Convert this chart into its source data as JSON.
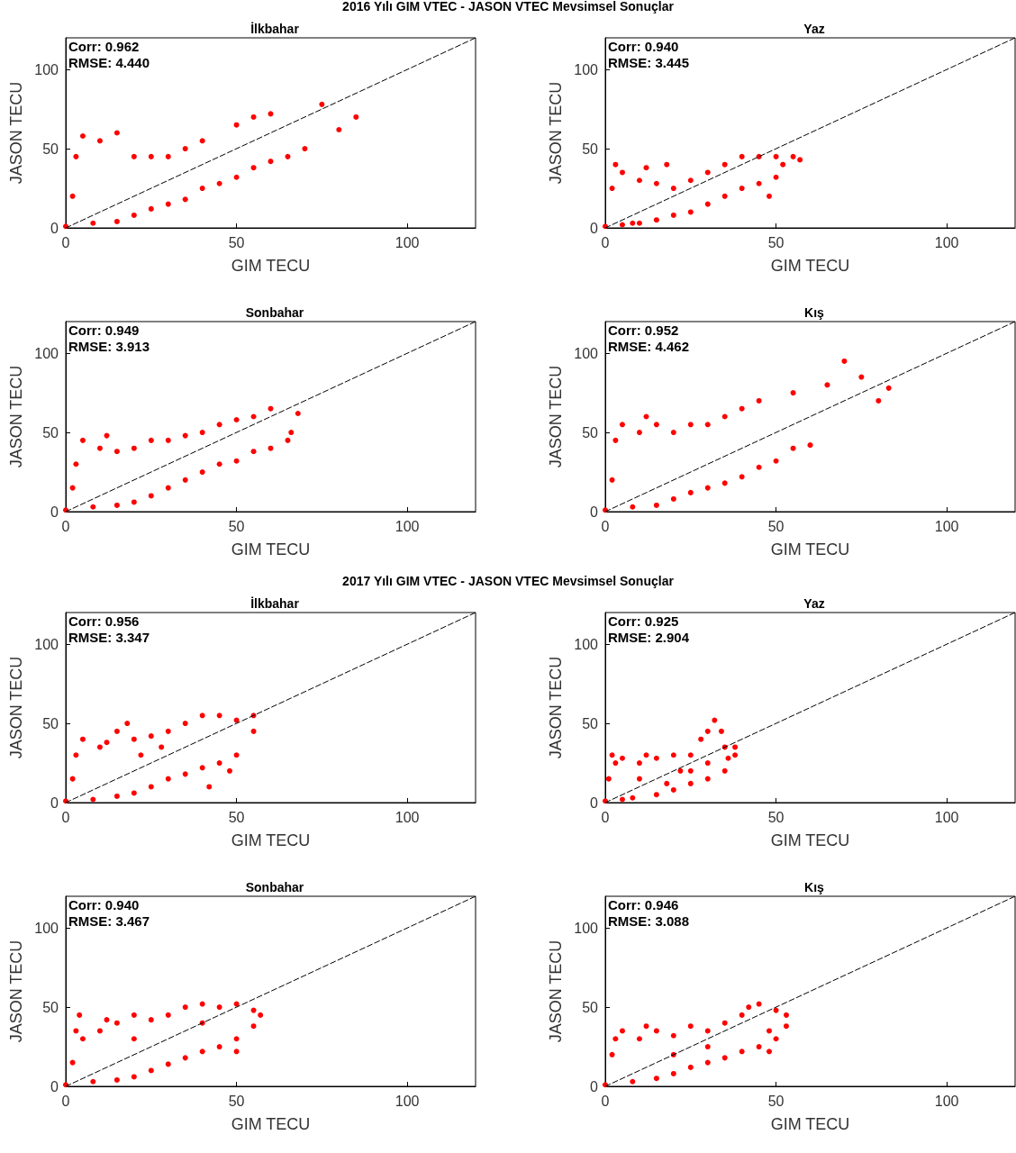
{
  "chart_data": [
    {
      "type": "scatter",
      "title": "İlkbahar",
      "xlabel": "GIM TECU",
      "ylabel": "JASON TECU",
      "xlim": [
        0,
        120
      ],
      "ylim": [
        0,
        120
      ],
      "xticks": [
        0,
        50,
        100
      ],
      "yticks": [
        0,
        50,
        100
      ],
      "grid": false,
      "marker": "circle",
      "annotations": [
        "Corr: 0.962",
        "RMSE: 4.440",
        "2016 Yılı GIM VTEC - JASON VTEC Mevsimsel Sonuçlar"
      ],
      "series": [
        {
          "color": "#ff0000",
          "x": [
            0,
            2,
            3,
            5,
            8,
            10,
            15,
            15,
            20,
            20,
            25,
            25,
            30,
            30,
            35,
            35,
            40,
            40,
            45,
            50,
            50,
            55,
            55,
            60,
            60,
            65,
            70,
            75,
            80,
            85
          ],
          "values": [
            1,
            20,
            45,
            58,
            3,
            55,
            4,
            60,
            8,
            45,
            12,
            45,
            15,
            45,
            18,
            50,
            25,
            55,
            28,
            32,
            65,
            38,
            70,
            42,
            72,
            45,
            50,
            78,
            62,
            70
          ]
        },
        {
          "type": "line",
          "color": "#000000",
          "line_style": "dashed",
          "marker": "none",
          "x": [
            0,
            120
          ],
          "values": [
            0,
            120
          ]
        }
      ]
    },
    {
      "type": "scatter",
      "title": "Yaz",
      "xlabel": "GIM TECU",
      "ylabel": "JASON TECU",
      "xlim": [
        0,
        120
      ],
      "ylim": [
        0,
        120
      ],
      "xticks": [
        0,
        50,
        100
      ],
      "yticks": [
        0,
        50,
        100
      ],
      "grid": false,
      "marker": "circle",
      "annotations": [
        "Corr: 0.940",
        "RMSE: 3.445"
      ],
      "series": [
        {
          "color": "#ff0000",
          "x": [
            0,
            2,
            3,
            5,
            5,
            8,
            10,
            12,
            15,
            15,
            20,
            20,
            25,
            25,
            30,
            30,
            35,
            35,
            40,
            40,
            45,
            45,
            50,
            50,
            55,
            57,
            48,
            18,
            10,
            52
          ],
          "values": [
            1,
            25,
            40,
            2,
            35,
            3,
            30,
            38,
            5,
            28,
            8,
            25,
            10,
            30,
            15,
            35,
            20,
            40,
            25,
            45,
            28,
            45,
            32,
            45,
            45,
            43,
            20,
            40,
            3,
            40
          ]
        },
        {
          "type": "line",
          "color": "#000000",
          "line_style": "dashed",
          "marker": "none",
          "x": [
            0,
            120
          ],
          "values": [
            0,
            120
          ]
        }
      ]
    },
    {
      "type": "scatter",
      "title": "Sonbahar",
      "xlabel": "GIM TECU",
      "ylabel": "JASON TECU",
      "xlim": [
        0,
        120
      ],
      "ylim": [
        0,
        120
      ],
      "xticks": [
        0,
        50,
        100
      ],
      "yticks": [
        0,
        50,
        100
      ],
      "grid": false,
      "marker": "circle",
      "annotations": [
        "Corr: 0.949",
        "RMSE: 3.913"
      ],
      "series": [
        {
          "color": "#ff0000",
          "x": [
            0,
            2,
            3,
            5,
            8,
            10,
            12,
            15,
            15,
            20,
            20,
            25,
            25,
            30,
            30,
            35,
            35,
            40,
            40,
            45,
            45,
            50,
            50,
            55,
            55,
            60,
            60,
            65,
            68,
            66
          ],
          "values": [
            1,
            15,
            30,
            45,
            3,
            40,
            48,
            4,
            38,
            6,
            40,
            10,
            45,
            15,
            45,
            20,
            48,
            25,
            50,
            30,
            55,
            32,
            58,
            38,
            60,
            40,
            65,
            45,
            62,
            50
          ]
        },
        {
          "type": "line",
          "color": "#000000",
          "line_style": "dashed",
          "marker": "none",
          "x": [
            0,
            120
          ],
          "values": [
            0,
            120
          ]
        }
      ]
    },
    {
      "type": "scatter",
      "title": "Kış",
      "xlabel": "GIM TECU",
      "ylabel": "JASON TECU",
      "xlim": [
        0,
        120
      ],
      "ylim": [
        0,
        120
      ],
      "xticks": [
        0,
        50,
        100
      ],
      "yticks": [
        0,
        50,
        100
      ],
      "grid": false,
      "marker": "circle",
      "annotations": [
        "Corr: 0.952",
        "RMSE: 4.462"
      ],
      "series": [
        {
          "color": "#ff0000",
          "x": [
            0,
            2,
            3,
            5,
            8,
            10,
            12,
            15,
            15,
            20,
            20,
            25,
            25,
            30,
            30,
            35,
            35,
            40,
            40,
            45,
            45,
            50,
            55,
            55,
            60,
            65,
            70,
            75,
            80,
            83
          ],
          "values": [
            1,
            20,
            45,
            55,
            3,
            50,
            60,
            4,
            55,
            8,
            50,
            12,
            55,
            15,
            55,
            18,
            60,
            22,
            65,
            28,
            70,
            32,
            40,
            75,
            42,
            80,
            95,
            85,
            70,
            78
          ]
        },
        {
          "type": "line",
          "color": "#000000",
          "line_style": "dashed",
          "marker": "none",
          "x": [
            0,
            120
          ],
          "values": [
            0,
            120
          ]
        }
      ]
    },
    {
      "type": "scatter",
      "title": "İlkbahar",
      "xlabel": "GIM TECU",
      "ylabel": "JASON TECU",
      "xlim": [
        0,
        120
      ],
      "ylim": [
        0,
        120
      ],
      "xticks": [
        0,
        50,
        100
      ],
      "yticks": [
        0,
        50,
        100
      ],
      "grid": false,
      "marker": "circle",
      "annotations": [
        "Corr: 0.956",
        "RMSE: 3.347",
        "2017 Yılı GIM VTEC - JASON VTEC Mevsimsel Sonuçlar"
      ],
      "series": [
        {
          "color": "#ff0000",
          "x": [
            0,
            2,
            3,
            5,
            8,
            10,
            12,
            15,
            15,
            18,
            20,
            20,
            25,
            25,
            30,
            30,
            35,
            35,
            40,
            40,
            45,
            45,
            50,
            50,
            55,
            55,
            42,
            48,
            22,
            28
          ],
          "values": [
            1,
            15,
            30,
            40,
            2,
            35,
            38,
            4,
            45,
            50,
            6,
            40,
            10,
            42,
            15,
            45,
            18,
            50,
            22,
            55,
            25,
            55,
            30,
            52,
            45,
            55,
            10,
            20,
            30,
            35
          ]
        },
        {
          "type": "line",
          "color": "#000000",
          "line_style": "dashed",
          "marker": "none",
          "x": [
            0,
            120
          ],
          "values": [
            0,
            120
          ]
        }
      ]
    },
    {
      "type": "scatter",
      "title": "Yaz",
      "xlabel": "GIM TECU",
      "ylabel": "JASON TECU",
      "xlim": [
        0,
        120
      ],
      "ylim": [
        0,
        120
      ],
      "xticks": [
        0,
        50,
        100
      ],
      "yticks": [
        0,
        50,
        100
      ],
      "grid": false,
      "marker": "circle",
      "annotations": [
        "Corr: 0.925",
        "RMSE: 2.904"
      ],
      "series": [
        {
          "color": "#ff0000",
          "x": [
            0,
            1,
            2,
            3,
            5,
            5,
            8,
            10,
            12,
            15,
            15,
            20,
            20,
            25,
            25,
            28,
            30,
            30,
            32,
            34,
            35,
            35,
            38,
            38,
            25,
            18,
            10,
            30,
            22,
            36
          ],
          "values": [
            1,
            15,
            30,
            25,
            2,
            28,
            3,
            25,
            30,
            5,
            28,
            8,
            30,
            12,
            30,
            40,
            15,
            45,
            52,
            45,
            20,
            35,
            30,
            35,
            20,
            12,
            15,
            25,
            20,
            28
          ]
        },
        {
          "type": "line",
          "color": "#000000",
          "line_style": "dashed",
          "marker": "none",
          "x": [
            0,
            120
          ],
          "values": [
            0,
            120
          ]
        }
      ]
    },
    {
      "type": "scatter",
      "title": "Sonbahar",
      "xlabel": "GIM TECU",
      "ylabel": "JASON TECU",
      "xlim": [
        0,
        120
      ],
      "ylim": [
        0,
        120
      ],
      "xticks": [
        0,
        50,
        100
      ],
      "yticks": [
        0,
        50,
        100
      ],
      "grid": false,
      "marker": "circle",
      "annotations": [
        "Corr: 0.940",
        "RMSE: 3.467"
      ],
      "series": [
        {
          "color": "#ff0000",
          "x": [
            0,
            2,
            3,
            4,
            5,
            8,
            10,
            12,
            15,
            15,
            20,
            20,
            25,
            25,
            30,
            30,
            35,
            35,
            40,
            40,
            45,
            45,
            50,
            50,
            55,
            55,
            57,
            50,
            20,
            40
          ],
          "values": [
            1,
            15,
            35,
            45,
            30,
            3,
            35,
            42,
            4,
            40,
            6,
            45,
            10,
            42,
            14,
            45,
            18,
            50,
            22,
            52,
            25,
            50,
            30,
            52,
            38,
            48,
            45,
            22,
            30,
            40
          ]
        },
        {
          "type": "line",
          "color": "#000000",
          "line_style": "dashed",
          "marker": "none",
          "x": [
            0,
            120
          ],
          "values": [
            0,
            120
          ]
        }
      ]
    },
    {
      "type": "scatter",
      "title": "Kış",
      "xlabel": "GIM TECU",
      "ylabel": "JASON TECU",
      "xlim": [
        0,
        120
      ],
      "ylim": [
        0,
        120
      ],
      "xticks": [
        0,
        50,
        100
      ],
      "yticks": [
        0,
        50,
        100
      ],
      "grid": false,
      "marker": "circle",
      "annotations": [
        "Corr: 0.946",
        "RMSE: 3.088"
      ],
      "series": [
        {
          "color": "#ff0000",
          "x": [
            0,
            2,
            3,
            5,
            8,
            10,
            12,
            15,
            15,
            20,
            20,
            25,
            25,
            30,
            30,
            35,
            35,
            40,
            40,
            42,
            45,
            45,
            50,
            50,
            53,
            53,
            48,
            48,
            30,
            20
          ],
          "values": [
            1,
            20,
            30,
            35,
            3,
            30,
            38,
            5,
            35,
            8,
            32,
            12,
            38,
            15,
            35,
            18,
            40,
            22,
            45,
            50,
            25,
            52,
            30,
            48,
            45,
            38,
            22,
            35,
            25,
            20
          ]
        },
        {
          "type": "line",
          "color": "#000000",
          "line_style": "dashed",
          "marker": "none",
          "x": [
            0,
            120
          ],
          "values": [
            0,
            120
          ]
        }
      ]
    }
  ]
}
